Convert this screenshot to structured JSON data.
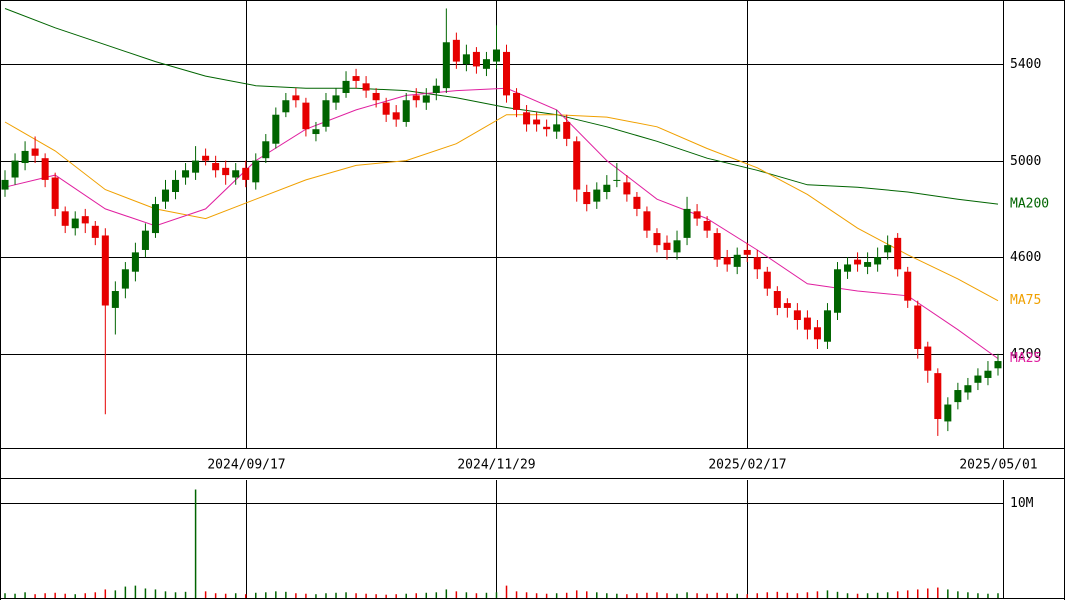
{
  "chart_data": {
    "type": "candlestick",
    "up_color": "#006400",
    "down_color": "#e60000",
    "grid": true,
    "ylim": [
      3810,
      5665
    ],
    "yticks": [
      4200,
      4600,
      5000,
      5400
    ],
    "categories": [
      null,
      null,
      null,
      null,
      null,
      null,
      null,
      null,
      null,
      null,
      null,
      null,
      null,
      null,
      null,
      null,
      null,
      null,
      null,
      null,
      null,
      null,
      null,
      null,
      "2024/09/17",
      null,
      null,
      null,
      null,
      null,
      null,
      null,
      null,
      null,
      null,
      null,
      null,
      null,
      null,
      null,
      null,
      null,
      null,
      null,
      null,
      null,
      null,
      null,
      null,
      "2024/11/29",
      null,
      null,
      null,
      null,
      null,
      null,
      null,
      null,
      null,
      null,
      null,
      null,
      null,
      null,
      null,
      null,
      null,
      null,
      null,
      null,
      null,
      null,
      null,
      null,
      "2025/02/17",
      null,
      null,
      null,
      null,
      null,
      null,
      null,
      null,
      null,
      null,
      null,
      null,
      null,
      null,
      null,
      null,
      null,
      null,
      null,
      null,
      null,
      null,
      null,
      null,
      "2025/05/01"
    ],
    "open": [
      4880,
      4930,
      4990,
      5050,
      5010,
      4930,
      4790,
      4720,
      4770,
      4730,
      4690,
      4390,
      4470,
      4540,
      4630,
      4700,
      4830,
      4870,
      4930,
      4950,
      5020,
      4990,
      4970,
      4930,
      4970,
      4910,
      5010,
      5070,
      5200,
      5270,
      5240,
      5110,
      5140,
      5240,
      5280,
      5350,
      5320,
      5280,
      5240,
      5200,
      5160,
      5270,
      5240,
      5280,
      5300,
      5500,
      5400,
      5450,
      5380,
      5410,
      5450,
      5280,
      5200,
      5170,
      5140,
      5120,
      5160,
      5080,
      4870,
      4830,
      4870,
      4920,
      4910,
      4850,
      4790,
      4700,
      4660,
      4620,
      4680,
      4790,
      4750,
      4700,
      4600,
      4560,
      4630,
      4600,
      4540,
      4460,
      4410,
      4380,
      4350,
      4310,
      4250,
      4370,
      4540,
      4590,
      4560,
      4570,
      4620,
      4680,
      4540,
      4400,
      4230,
      4120,
      3920,
      4000,
      4040,
      4080,
      4100,
      4140
    ],
    "high": [
      4960,
      5030,
      5080,
      5100,
      5030,
      4950,
      4810,
      4790,
      4800,
      4750,
      4720,
      4500,
      4580,
      4660,
      4740,
      4850,
      4920,
      4960,
      4990,
      5060,
      5050,
      5020,
      5000,
      4990,
      5000,
      5030,
      5110,
      5220,
      5280,
      5300,
      5260,
      5160,
      5280,
      5300,
      5370,
      5380,
      5350,
      5300,
      5260,
      5230,
      5280,
      5300,
      5300,
      5340,
      5630,
      5530,
      5480,
      5470,
      5450,
      5560,
      5480,
      5300,
      5230,
      5200,
      5170,
      5210,
      5190,
      5100,
      4900,
      4910,
      4940,
      4990,
      4940,
      4870,
      4810,
      4720,
      4690,
      4710,
      4850,
      4820,
      4770,
      4720,
      4630,
      4640,
      4660,
      4630,
      4560,
      4480,
      4430,
      4410,
      4380,
      4340,
      4410,
      4580,
      4600,
      4620,
      4620,
      4640,
      4690,
      4700,
      4560,
      4420,
      4250,
      4140,
      4020,
      4080,
      4100,
      4140,
      4170,
      4200
    ],
    "low": [
      4850,
      4900,
      4960,
      4990,
      4890,
      4770,
      4700,
      4690,
      4700,
      4650,
      3950,
      4280,
      4430,
      4500,
      4600,
      4680,
      4800,
      4840,
      4900,
      4920,
      4980,
      4930,
      4900,
      4900,
      4890,
      4880,
      4990,
      5050,
      5180,
      5220,
      5100,
      5080,
      5120,
      5210,
      5260,
      5300,
      5260,
      5220,
      5160,
      5140,
      5140,
      5220,
      5210,
      5250,
      5280,
      5380,
      5370,
      5360,
      5350,
      5380,
      5240,
      5180,
      5120,
      5120,
      5100,
      5090,
      5060,
      4830,
      4790,
      4800,
      4840,
      4890,
      4830,
      4770,
      4680,
      4620,
      4590,
      4590,
      4650,
      4730,
      4680,
      4560,
      4540,
      4530,
      4580,
      4510,
      4440,
      4360,
      4350,
      4300,
      4260,
      4220,
      4220,
      4340,
      4510,
      4540,
      4530,
      4540,
      4590,
      4520,
      4390,
      4180,
      4080,
      3860,
      3880,
      3970,
      4010,
      4050,
      4070,
      4110
    ],
    "close": [
      4920,
      5000,
      5040,
      5020,
      4920,
      4800,
      4730,
      4760,
      4740,
      4680,
      4400,
      4460,
      4550,
      4620,
      4710,
      4820,
      4880,
      4920,
      4960,
      5000,
      5000,
      4960,
      4940,
      4960,
      4920,
      5000,
      5080,
      5190,
      5250,
      5250,
      5130,
      5130,
      5250,
      5270,
      5330,
      5330,
      5290,
      5250,
      5190,
      5170,
      5250,
      5250,
      5270,
      5310,
      5490,
      5410,
      5440,
      5390,
      5420,
      5460,
      5270,
      5210,
      5150,
      5150,
      5130,
      5150,
      5090,
      4880,
      4820,
      4880,
      4900,
      4920,
      4860,
      4800,
      4710,
      4650,
      4630,
      4670,
      4800,
      4760,
      4710,
      4590,
      4570,
      4610,
      4610,
      4550,
      4470,
      4390,
      4390,
      4340,
      4300,
      4260,
      4380,
      4550,
      4570,
      4570,
      4580,
      4600,
      4650,
      4550,
      4420,
      4220,
      4130,
      3930,
      3990,
      4050,
      4070,
      4110,
      4130,
      4170
    ],
    "moving_averages": [
      {
        "name": "MA200",
        "color": "#006400",
        "x": [
          0,
          5,
          10,
          15,
          20,
          25,
          30,
          35,
          40,
          45,
          50,
          55,
          60,
          65,
          70,
          75,
          80,
          85,
          90,
          95,
          99
        ],
        "values": [
          5630,
          5550,
          5480,
          5410,
          5350,
          5310,
          5300,
          5300,
          5290,
          5260,
          5220,
          5190,
          5140,
          5080,
          5010,
          4960,
          4900,
          4890,
          4870,
          4840,
          4820
        ]
      },
      {
        "name": "MA75",
        "color": "#f0a000",
        "x": [
          0,
          5,
          10,
          15,
          20,
          25,
          30,
          35,
          40,
          45,
          50,
          55,
          60,
          65,
          70,
          75,
          80,
          85,
          90,
          95,
          99
        ],
        "values": [
          5160,
          5040,
          4880,
          4800,
          4760,
          4840,
          4920,
          4980,
          5000,
          5070,
          5190,
          5190,
          5180,
          5140,
          5050,
          4970,
          4860,
          4720,
          4610,
          4510,
          4420
        ]
      },
      {
        "name": "MA25",
        "color": "#e020a0",
        "x": [
          0,
          5,
          10,
          15,
          20,
          25,
          30,
          35,
          40,
          45,
          50,
          55,
          60,
          65,
          70,
          75,
          80,
          85,
          90,
          95,
          99
        ],
        "values": [
          4890,
          4940,
          4800,
          4730,
          4800,
          5000,
          5130,
          5210,
          5270,
          5290,
          5300,
          5210,
          5000,
          4840,
          4760,
          4630,
          4490,
          4460,
          4440,
          4300,
          4180
        ]
      }
    ],
    "volume": {
      "ylim": [
        0,
        12400000
      ],
      "yticks": [
        {
          "value": 10000000,
          "label": "10M"
        }
      ],
      "values": [
        500000,
        450000,
        600000,
        400000,
        500000,
        550000,
        450000,
        400000,
        500000,
        600000,
        900000,
        800000,
        1200000,
        1300000,
        1000000,
        900000,
        700000,
        600000,
        650000,
        11400000,
        700000,
        500000,
        450000,
        500000,
        400000,
        550000,
        600000,
        700000,
        650000,
        500000,
        450000,
        400000,
        500000,
        550000,
        600000,
        500000,
        450000,
        400000,
        350000,
        400000,
        450000,
        500000,
        550000,
        600000,
        900000,
        700000,
        600000,
        500000,
        550000,
        600000,
        1300000,
        700000,
        600000,
        500000,
        450000,
        500000,
        550000,
        800000,
        700000,
        600000,
        500000,
        450000,
        400000,
        500000,
        550000,
        600000,
        500000,
        450000,
        600000,
        500000,
        450000,
        550000,
        500000,
        450000,
        400000,
        500000,
        600000,
        650000,
        550000,
        500000,
        600000,
        700000,
        800000,
        650000,
        500000,
        450000,
        500000,
        550000,
        600000,
        700000,
        800000,
        900000,
        1000000,
        1100000,
        900000,
        700000,
        600000,
        500000,
        450000,
        500000
      ]
    }
  }
}
